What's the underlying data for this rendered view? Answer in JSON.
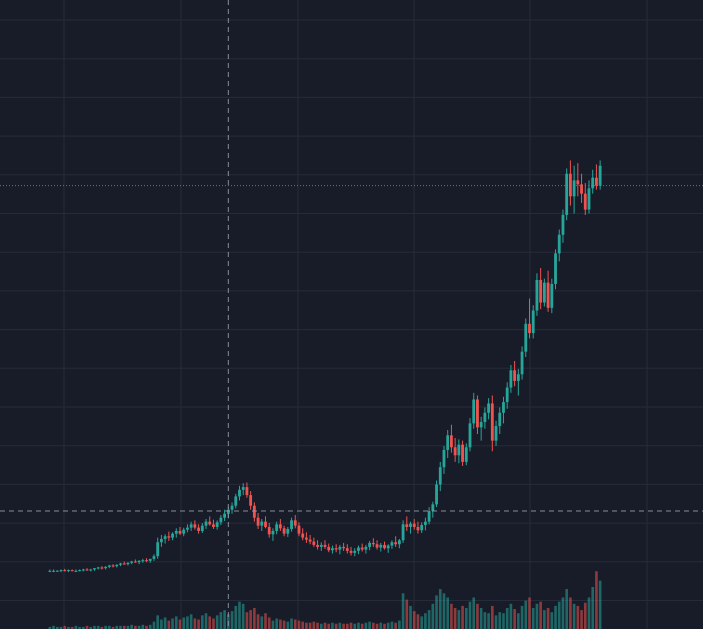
{
  "theme": {
    "background": "#181c28",
    "grid": "#262b3a",
    "up_color": "#26a69a",
    "down_color": "#ef5350",
    "crosshair": "#9aa0ad",
    "price_line": "#3fa69d"
  },
  "chart_data": {
    "type": "candlestick",
    "title": "",
    "xlabel": "",
    "ylabel": "",
    "grid": true,
    "legend": "none",
    "tick_labels_visible": false,
    "ylim": [
      0,
      100
    ],
    "volume_ylim": [
      0,
      100
    ],
    "crosshair": {
      "x_index": 48,
      "y_value": 14
    },
    "last_price_line": 63,
    "x": [
      0,
      1,
      2,
      3,
      4,
      5,
      6,
      7,
      8,
      9,
      10,
      11,
      12,
      13,
      14,
      15,
      16,
      17,
      18,
      19,
      20,
      21,
      22,
      23,
      24,
      25,
      26,
      27,
      28,
      29,
      30,
      31,
      32,
      33,
      34,
      35,
      36,
      37,
      38,
      39,
      40,
      41,
      42,
      43,
      44,
      45,
      46,
      47,
      48,
      49,
      50,
      51,
      52,
      53,
      54,
      55,
      56,
      57,
      58,
      59,
      60,
      61,
      62,
      63,
      64,
      65,
      66,
      67,
      68,
      69,
      70,
      71,
      72,
      73,
      74,
      75,
      76,
      77,
      78,
      79,
      80,
      81,
      82,
      83,
      84,
      85,
      86,
      87,
      88,
      89,
      90,
      91,
      92,
      93,
      94,
      95,
      96,
      97,
      98,
      99,
      100,
      101,
      102,
      103,
      104,
      105,
      106,
      107,
      108,
      109,
      110,
      111,
      112,
      113,
      114,
      115,
      116,
      117,
      118,
      119,
      120,
      121,
      122,
      123,
      124,
      125,
      126,
      127,
      128,
      129,
      130,
      131,
      132,
      133,
      134,
      135,
      136,
      137,
      138,
      139,
      140,
      141,
      142,
      143,
      144,
      145,
      146,
      147,
      148
    ],
    "ohlc": [
      [
        4.9,
        5.2,
        4.8,
        5.0
      ],
      [
        5.0,
        5.2,
        4.8,
        5.0
      ],
      [
        5.0,
        5.1,
        4.9,
        5.0
      ],
      [
        5.0,
        5.2,
        4.8,
        5.1
      ],
      [
        5.1,
        5.3,
        4.9,
        5.0
      ],
      [
        5.0,
        5.2,
        4.8,
        5.1
      ],
      [
        5.1,
        5.2,
        4.9,
        5.0
      ],
      [
        5.0,
        5.2,
        4.8,
        5.0
      ],
      [
        5.0,
        5.2,
        4.9,
        5.1
      ],
      [
        5.1,
        5.3,
        4.9,
        5.2
      ],
      [
        5.2,
        5.4,
        5.0,
        5.1
      ],
      [
        5.1,
        5.3,
        4.9,
        5.2
      ],
      [
        5.2,
        5.4,
        5.0,
        5.4
      ],
      [
        5.4,
        5.6,
        5.2,
        5.5
      ],
      [
        5.5,
        5.7,
        5.2,
        5.4
      ],
      [
        5.4,
        5.7,
        5.2,
        5.6
      ],
      [
        5.6,
        5.9,
        5.4,
        5.8
      ],
      [
        5.8,
        6.0,
        5.5,
        5.7
      ],
      [
        5.7,
        6.0,
        5.5,
        5.9
      ],
      [
        5.9,
        6.2,
        5.7,
        6.1
      ],
      [
        6.1,
        6.4,
        5.9,
        6.0
      ],
      [
        6.0,
        6.3,
        5.8,
        6.2
      ],
      [
        6.2,
        6.5,
        6.0,
        6.4
      ],
      [
        6.4,
        6.7,
        6.2,
        6.3
      ],
      [
        6.3,
        6.6,
        6.0,
        6.5
      ],
      [
        6.5,
        6.8,
        6.2,
        6.6
      ],
      [
        6.6,
        6.9,
        6.3,
        6.5
      ],
      [
        6.5,
        6.8,
        6.2,
        6.8
      ],
      [
        6.8,
        7.5,
        6.5,
        7.2
      ],
      [
        7.2,
        10.0,
        6.8,
        9.3
      ],
      [
        9.3,
        10.4,
        8.6,
        9.8
      ],
      [
        9.8,
        10.5,
        9.1,
        10.2
      ],
      [
        10.2,
        10.9,
        9.5,
        10.0
      ],
      [
        10.0,
        10.8,
        9.6,
        10.6
      ],
      [
        10.6,
        11.4,
        10.0,
        11.0
      ],
      [
        11.0,
        11.6,
        10.4,
        10.6
      ],
      [
        10.6,
        11.5,
        10.2,
        11.2
      ],
      [
        11.2,
        12.0,
        10.8,
        11.5
      ],
      [
        11.5,
        12.4,
        11.0,
        12.0
      ],
      [
        12.0,
        12.6,
        11.2,
        11.5
      ],
      [
        11.5,
        12.0,
        10.6,
        11.0
      ],
      [
        11.0,
        12.2,
        10.7,
        11.8
      ],
      [
        11.8,
        12.8,
        11.3,
        12.4
      ],
      [
        12.4,
        13.2,
        11.8,
        12.0
      ],
      [
        12.0,
        12.7,
        11.3,
        11.6
      ],
      [
        11.6,
        12.6,
        11.2,
        12.3
      ],
      [
        12.3,
        13.4,
        11.9,
        13.0
      ],
      [
        13.0,
        14.2,
        12.5,
        13.6
      ],
      [
        13.6,
        14.6,
        12.9,
        14.2
      ],
      [
        14.2,
        15.3,
        13.6,
        14.8
      ],
      [
        14.8,
        16.6,
        14.4,
        16.2
      ],
      [
        16.2,
        17.8,
        15.6,
        17.2
      ],
      [
        17.2,
        18.2,
        16.4,
        17.6
      ],
      [
        17.6,
        18.3,
        16.0,
        16.4
      ],
      [
        16.4,
        17.0,
        14.2,
        14.8
      ],
      [
        14.8,
        15.3,
        12.4,
        13.0
      ],
      [
        13.0,
        13.7,
        11.3,
        11.8
      ],
      [
        11.8,
        12.8,
        11.0,
        12.4
      ],
      [
        12.4,
        13.2,
        11.4,
        11.6
      ],
      [
        11.6,
        12.2,
        10.0,
        10.5
      ],
      [
        10.5,
        11.4,
        9.5,
        11.0
      ],
      [
        11.0,
        12.4,
        10.5,
        12.0
      ],
      [
        12.0,
        12.8,
        11.0,
        11.4
      ],
      [
        11.4,
        11.8,
        10.2,
        10.6
      ],
      [
        10.6,
        11.6,
        10.1,
        11.3
      ],
      [
        11.3,
        13.0,
        10.9,
        12.6
      ],
      [
        12.6,
        13.4,
        11.4,
        11.8
      ],
      [
        11.8,
        12.3,
        10.2,
        10.6
      ],
      [
        10.6,
        11.4,
        9.6,
        10.0
      ],
      [
        10.0,
        10.8,
        9.2,
        9.7
      ],
      [
        9.7,
        10.4,
        9.0,
        9.4
      ],
      [
        9.4,
        10.0,
        8.6,
        8.9
      ],
      [
        8.9,
        9.6,
        8.2,
        8.6
      ],
      [
        8.6,
        9.3,
        8.0,
        8.9
      ],
      [
        8.9,
        9.6,
        8.3,
        8.6
      ],
      [
        8.6,
        9.1,
        7.8,
        8.1
      ],
      [
        8.1,
        8.8,
        7.6,
        8.4
      ],
      [
        8.4,
        9.0,
        7.8,
        8.2
      ],
      [
        8.2,
        8.9,
        7.5,
        8.6
      ],
      [
        8.6,
        9.2,
        8.0,
        8.4
      ],
      [
        8.4,
        9.0,
        7.6,
        8.0
      ],
      [
        8.0,
        8.6,
        7.3,
        7.7
      ],
      [
        7.7,
        8.4,
        7.2,
        8.0
      ],
      [
        8.0,
        8.8,
        7.5,
        8.5
      ],
      [
        8.5,
        9.1,
        7.9,
        8.2
      ],
      [
        8.2,
        8.9,
        7.6,
        8.6
      ],
      [
        8.6,
        9.5,
        8.1,
        9.2
      ],
      [
        9.2,
        9.9,
        8.6,
        9.0
      ],
      [
        9.0,
        9.6,
        8.2,
        8.5
      ],
      [
        8.5,
        9.2,
        7.9,
        8.9
      ],
      [
        8.9,
        9.4,
        8.2,
        8.4
      ],
      [
        8.4,
        9.0,
        7.7,
        8.8
      ],
      [
        8.8,
        9.6,
        8.3,
        9.3
      ],
      [
        9.3,
        10.2,
        8.6,
        9.0
      ],
      [
        9.0,
        9.8,
        8.4,
        9.6
      ],
      [
        9.6,
        12.6,
        9.2,
        12.0
      ],
      [
        12.0,
        13.2,
        11.0,
        11.6
      ],
      [
        11.6,
        12.4,
        10.6,
        12.1
      ],
      [
        12.1,
        12.8,
        11.2,
        11.6
      ],
      [
        11.6,
        12.4,
        10.6,
        11.1
      ],
      [
        11.1,
        12.3,
        10.7,
        11.9
      ],
      [
        11.9,
        13.0,
        11.1,
        12.4
      ],
      [
        12.4,
        14.6,
        12.0,
        14.0
      ],
      [
        14.0,
        15.4,
        13.0,
        15.0
      ],
      [
        15.0,
        18.6,
        14.6,
        18.0
      ],
      [
        18.0,
        21.4,
        17.0,
        20.6
      ],
      [
        20.6,
        23.8,
        19.6,
        23.2
      ],
      [
        23.2,
        26.2,
        22.0,
        25.4
      ],
      [
        25.4,
        27.0,
        22.8,
        23.6
      ],
      [
        23.6,
        25.0,
        21.4,
        22.4
      ],
      [
        22.4,
        24.8,
        21.2,
        24.0
      ],
      [
        24.0,
        24.6,
        20.8,
        21.4
      ],
      [
        21.4,
        24.2,
        20.9,
        23.6
      ],
      [
        23.6,
        28.0,
        23.0,
        27.2
      ],
      [
        27.2,
        31.8,
        26.4,
        30.8
      ],
      [
        30.8,
        31.4,
        25.6,
        26.6
      ],
      [
        26.6,
        28.2,
        24.6,
        27.4
      ],
      [
        27.4,
        29.6,
        26.4,
        28.8
      ],
      [
        28.8,
        31.0,
        27.8,
        30.2
      ],
      [
        30.2,
        31.4,
        23.0,
        24.6
      ],
      [
        24.6,
        27.6,
        23.8,
        26.8
      ],
      [
        26.8,
        29.6,
        25.6,
        28.8
      ],
      [
        28.8,
        31.2,
        27.2,
        30.4
      ],
      [
        30.4,
        33.4,
        29.4,
        32.6
      ],
      [
        32.6,
        36.0,
        31.8,
        35.2
      ],
      [
        35.2,
        36.6,
        32.8,
        33.6
      ],
      [
        33.6,
        35.4,
        31.4,
        34.6
      ],
      [
        34.6,
        38.8,
        33.8,
        38.0
      ],
      [
        38.0,
        43.0,
        37.2,
        42.2
      ],
      [
        42.2,
        46.0,
        40.0,
        40.8
      ],
      [
        40.8,
        45.0,
        40.0,
        44.2
      ],
      [
        44.2,
        49.8,
        43.4,
        48.8
      ],
      [
        48.8,
        50.6,
        44.4,
        45.4
      ],
      [
        45.4,
        49.0,
        44.8,
        48.4
      ],
      [
        48.4,
        50.2,
        44.0,
        44.6
      ],
      [
        44.6,
        49.0,
        43.8,
        48.2
      ],
      [
        48.2,
        53.4,
        47.4,
        52.8
      ],
      [
        52.8,
        56.4,
        51.6,
        55.6
      ],
      [
        55.6,
        59.4,
        54.4,
        58.6
      ],
      [
        58.6,
        65.6,
        57.8,
        64.8
      ],
      [
        64.8,
        66.8,
        60.0,
        61.4
      ],
      [
        61.4,
        66.0,
        58.8,
        63.8
      ],
      [
        63.8,
        66.4,
        61.4,
        63.2
      ],
      [
        63.2,
        64.8,
        60.4,
        61.8
      ],
      [
        61.8,
        63.4,
        58.6,
        59.4
      ],
      [
        59.4,
        63.8,
        58.8,
        62.6
      ],
      [
        62.6,
        65.4,
        61.8,
        64.2
      ],
      [
        64.2,
        66.2,
        62.4,
        63.0
      ],
      [
        63.0,
        66.8,
        62.4,
        66.0
      ]
    ],
    "volume": [
      2,
      3,
      2,
      2,
      3,
      2,
      2,
      3,
      2,
      2,
      3,
      2,
      3,
      3,
      2,
      3,
      3,
      2,
      3,
      3,
      3,
      3,
      4,
      3,
      3,
      4,
      3,
      4,
      7,
      13,
      9,
      11,
      8,
      10,
      12,
      9,
      11,
      12,
      14,
      10,
      9,
      13,
      15,
      12,
      10,
      13,
      16,
      18,
      14,
      17,
      22,
      26,
      24,
      16,
      18,
      20,
      14,
      12,
      15,
      11,
      8,
      10,
      9,
      8,
      7,
      10,
      9,
      8,
      7,
      6,
      6,
      7,
      6,
      5,
      6,
      5,
      6,
      5,
      6,
      5,
      5,
      6,
      5,
      6,
      5,
      6,
      7,
      6,
      5,
      6,
      5,
      6,
      7,
      6,
      8,
      34,
      28,
      22,
      17,
      14,
      12,
      15,
      18,
      24,
      32,
      38,
      34,
      30,
      24,
      20,
      18,
      22,
      20,
      26,
      30,
      24,
      20,
      16,
      15,
      22,
      13,
      16,
      15,
      20,
      24,
      19,
      15,
      22,
      27,
      30,
      20,
      24,
      26,
      18,
      20,
      16,
      22,
      26,
      30,
      38,
      30,
      24,
      22,
      18,
      25,
      30,
      40,
      55,
      46
    ]
  }
}
